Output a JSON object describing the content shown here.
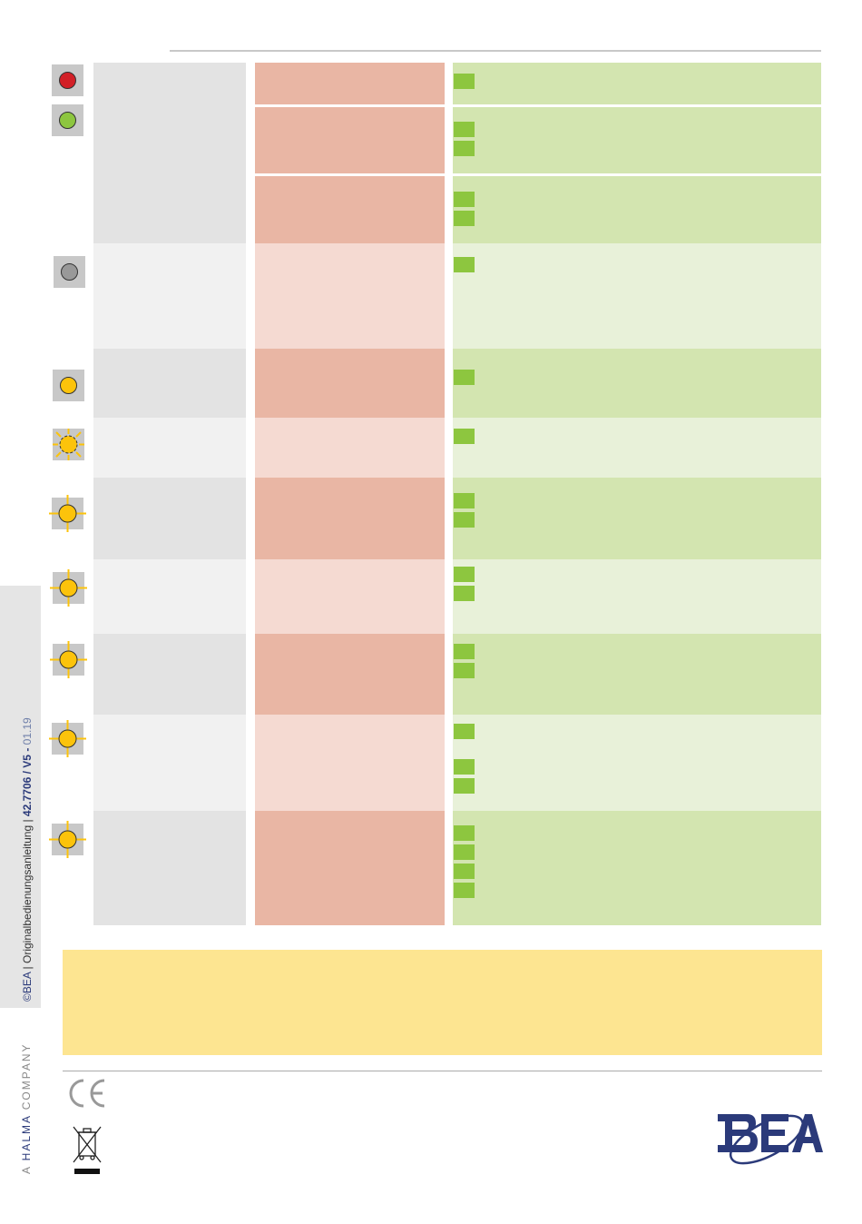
{
  "footer": {
    "copyright_prefix": "©BEA",
    "manual_title": "Originalbedienungsanleitung",
    "document_code": "42.7706 / V5",
    "version_date": "01.19",
    "company_prefix": "A",
    "company_name": "HALMA",
    "company_suffix": "COMPANY"
  },
  "colors": {
    "led_red": "#d22027",
    "led_green": "#8dc63f",
    "led_grey": "#999999",
    "led_yellow": "#fcc30b",
    "check_green": "#8dc63f",
    "note_yellow": "#fde591"
  },
  "icons": {
    "conformity": "ce-mark-icon",
    "disposal": "weee-crossed-bin-icon",
    "brand": "bea-logo-icon"
  }
}
